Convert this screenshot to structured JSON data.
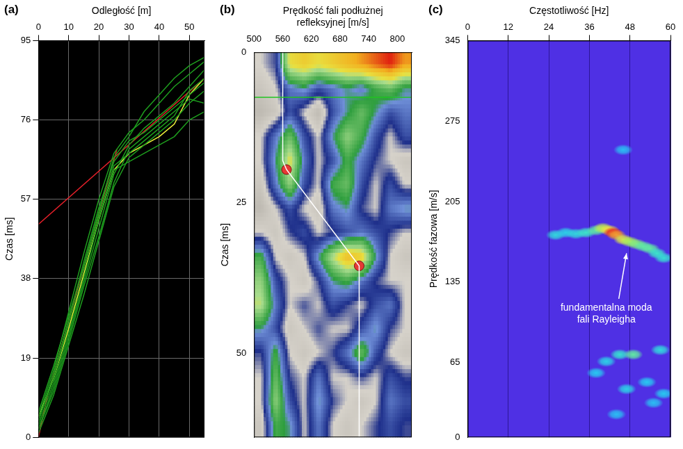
{
  "chart_data": [
    {
      "panel_label": "(a)",
      "type": "line",
      "x_label": "Odległość [m]",
      "y_label": "Czas [ms]",
      "xlim": [
        0,
        55
      ],
      "xticks": [
        0,
        10,
        20,
        30,
        40,
        50
      ],
      "ylim": [
        0,
        95
      ],
      "yticks": [
        0,
        19,
        38,
        57,
        76,
        95
      ],
      "grid": true,
      "series": [
        {
          "color": "#1e9e1e",
          "x": [
            0,
            5,
            10,
            15,
            20,
            25,
            30,
            35,
            40,
            45,
            50,
            55
          ],
          "values": [
            2,
            12,
            24,
            37,
            50,
            63,
            70,
            74,
            77,
            80,
            84,
            88
          ]
        },
        {
          "color": "#1e9e1e",
          "x": [
            0,
            5,
            10,
            15,
            20,
            25,
            30,
            35,
            40,
            45,
            50,
            55
          ],
          "values": [
            4,
            15,
            28,
            42,
            55,
            66,
            71,
            73,
            76,
            79,
            82,
            85
          ]
        },
        {
          "color": "#1e9e1e",
          "x": [
            0,
            5,
            10,
            15,
            20,
            25,
            30,
            35,
            40,
            45,
            50,
            55
          ],
          "values": [
            1,
            10,
            22,
            34,
            47,
            60,
            67,
            70,
            73,
            76,
            80,
            83
          ]
        },
        {
          "color": "#1e9e1e",
          "x": [
            0,
            5,
            10,
            15,
            20,
            25,
            30,
            35,
            40,
            45,
            50,
            55
          ],
          "values": [
            5,
            16,
            30,
            44,
            57,
            68,
            73,
            76,
            80,
            84,
            87,
            90
          ]
        },
        {
          "color": "#1e9e1e",
          "x": [
            0,
            5,
            10,
            15,
            20,
            25,
            30,
            35,
            40,
            45,
            50,
            55
          ],
          "values": [
            3,
            13,
            25,
            38,
            52,
            64,
            66,
            68,
            70,
            72,
            76,
            78
          ]
        },
        {
          "color": "#1e9e1e",
          "x": [
            0,
            5,
            10,
            15,
            20,
            25,
            30,
            35,
            40,
            45,
            50,
            55
          ],
          "values": [
            6,
            17,
            29,
            41,
            54,
            67,
            72,
            78,
            82,
            86,
            89,
            91
          ]
        },
        {
          "color": "#1e9e1e",
          "x": [
            0,
            5,
            10,
            15,
            20,
            25,
            30,
            35,
            40,
            45,
            50,
            55
          ],
          "values": [
            2,
            11,
            23,
            36,
            48,
            61,
            69,
            72,
            75,
            78,
            81,
            80
          ]
        },
        {
          "color": "#1e9e1e",
          "x": [
            0,
            5,
            10,
            15,
            20,
            25,
            30,
            35,
            40,
            45,
            50,
            55
          ],
          "values": [
            4,
            14,
            27,
            40,
            53,
            65,
            68,
            71,
            74,
            77,
            83,
            86
          ]
        },
        {
          "color": "#f2f23a",
          "x": [
            0,
            5,
            10,
            15,
            20,
            25,
            30,
            35,
            40,
            45,
            50,
            55
          ],
          "values": [
            5,
            14,
            26,
            39,
            52,
            64,
            68,
            70,
            72,
            75,
            82,
            86
          ]
        },
        {
          "color": "#e8202a",
          "x": [
            0,
            3,
            26
          ],
          "values": [
            0,
            10,
            69
          ]
        },
        {
          "color": "#e8202a",
          "x": [
            0,
            55
          ],
          "values": [
            51,
            86
          ]
        }
      ]
    },
    {
      "panel_label": "(b)",
      "type": "heatmap",
      "x_label": "Prędkość fali podłużnej refleksyjnej [m/s]",
      "y_label": "Czas [ms]",
      "xlim": [
        500,
        830
      ],
      "xticks": [
        500,
        560,
        620,
        680,
        740,
        800
      ],
      "ylim": [
        0,
        64
      ],
      "yticks": [
        0,
        25,
        50
      ],
      "grid": false,
      "cells": {
        "x": [
          515,
          545,
          575,
          605,
          635,
          665,
          695,
          725,
          755,
          785,
          815
        ],
        "y": [
          2,
          6,
          10,
          14,
          18,
          22,
          26,
          30,
          34,
          38,
          42,
          46,
          50,
          54,
          58,
          62
        ],
        "z": [
          [
            0.3,
            0.35,
            0.75,
            0.8,
            0.75,
            0.8,
            0.85,
            0.9,
            0.95,
            1.0,
            0.9
          ],
          [
            0.25,
            0.3,
            0.45,
            0.5,
            0.4,
            0.45,
            0.5,
            0.45,
            0.55,
            0.6,
            0.5
          ],
          [
            0.2,
            0.25,
            0.4,
            0.3,
            0.2,
            0.4,
            0.5,
            0.6,
            0.5,
            0.4,
            0.45
          ],
          [
            0.3,
            0.45,
            0.6,
            0.4,
            0.3,
            0.5,
            0.65,
            0.55,
            0.4,
            0.3,
            0.4
          ],
          [
            0.3,
            0.5,
            0.75,
            0.45,
            0.3,
            0.4,
            0.55,
            0.45,
            0.35,
            0.3,
            0.25
          ],
          [
            0.25,
            0.45,
            0.65,
            0.4,
            0.3,
            0.55,
            0.6,
            0.4,
            0.3,
            0.4,
            0.3
          ],
          [
            0.2,
            0.3,
            0.4,
            0.3,
            0.25,
            0.45,
            0.5,
            0.35,
            0.3,
            0.45,
            0.5
          ],
          [
            0.3,
            0.25,
            0.35,
            0.4,
            0.3,
            0.35,
            0.4,
            0.45,
            0.4,
            0.35,
            0.3
          ],
          [
            0.55,
            0.3,
            0.25,
            0.3,
            0.5,
            0.7,
            0.85,
            0.8,
            0.5,
            0.3,
            0.25
          ],
          [
            0.65,
            0.4,
            0.3,
            0.25,
            0.35,
            0.5,
            0.55,
            0.45,
            0.35,
            0.3,
            0.3
          ],
          [
            0.7,
            0.45,
            0.3,
            0.35,
            0.3,
            0.4,
            0.35,
            0.3,
            0.4,
            0.45,
            0.3
          ],
          [
            0.5,
            0.4,
            0.25,
            0.3,
            0.35,
            0.3,
            0.3,
            0.4,
            0.5,
            0.35,
            0.3
          ],
          [
            0.35,
            0.55,
            0.3,
            0.25,
            0.3,
            0.35,
            0.45,
            0.6,
            0.4,
            0.3,
            0.25
          ],
          [
            0.3,
            0.6,
            0.35,
            0.3,
            0.45,
            0.3,
            0.3,
            0.35,
            0.3,
            0.4,
            0.35
          ],
          [
            0.3,
            0.65,
            0.4,
            0.3,
            0.5,
            0.35,
            0.3,
            0.25,
            0.3,
            0.45,
            0.4
          ],
          [
            0.25,
            0.55,
            0.5,
            0.3,
            0.45,
            0.3,
            0.25,
            0.3,
            0.35,
            0.4,
            0.35
          ]
        ]
      },
      "series": [
        {
          "color": "#22c422",
          "x": [
            500,
            830
          ],
          "values": [
            7.5,
            7.5
          ]
        },
        {
          "color": "#ffffff",
          "x": [
            560,
            560,
            568,
            720,
            720
          ],
          "values": [
            0,
            18,
            19.5,
            35.5,
            64
          ]
        },
        {
          "color": "#e53935",
          "marker": "circle",
          "line_style": "none",
          "x": [
            568,
            720
          ],
          "values": [
            19.5,
            35.5
          ]
        }
      ]
    },
    {
      "panel_label": "(c)",
      "type": "scatter",
      "x_label": "Częstotliwość [Hz]",
      "y_label": "Prędkość fazowa [m/s]",
      "xlim": [
        0,
        60
      ],
      "xticks": [
        0,
        12,
        24,
        36,
        48,
        60
      ],
      "ylim": [
        0,
        345
      ],
      "yticks": [
        0,
        65,
        135,
        205,
        275,
        345
      ],
      "grid": "x",
      "color": "#4f30e4",
      "points": {
        "x": [
          26,
          29,
          32,
          35,
          38,
          40,
          42,
          43,
          44,
          46,
          48,
          50,
          52,
          54,
          56,
          58,
          46,
          45,
          49,
          57,
          41,
          38,
          47,
          53,
          58,
          55,
          44
        ],
        "y": [
          176,
          178,
          177,
          178,
          180,
          182,
          180,
          178,
          176,
          172,
          170,
          168,
          166,
          164,
          160,
          156,
          250,
          72,
          72,
          76,
          66,
          56,
          42,
          48,
          38,
          30,
          20
        ],
        "amplitude": [
          0.45,
          0.4,
          0.45,
          0.55,
          0.6,
          0.75,
          0.85,
          1.0,
          0.9,
          0.8,
          0.7,
          0.65,
          0.6,
          0.6,
          0.55,
          0.5,
          0.3,
          0.5,
          0.6,
          0.45,
          0.4,
          0.35,
          0.4,
          0.35,
          0.35,
          0.3,
          0.3
        ]
      },
      "annotation": {
        "text": "fundamentalna moda fali Rayleigha",
        "x": 41,
        "y": 118,
        "arrow_to": [
          47,
          160
        ]
      }
    }
  ]
}
